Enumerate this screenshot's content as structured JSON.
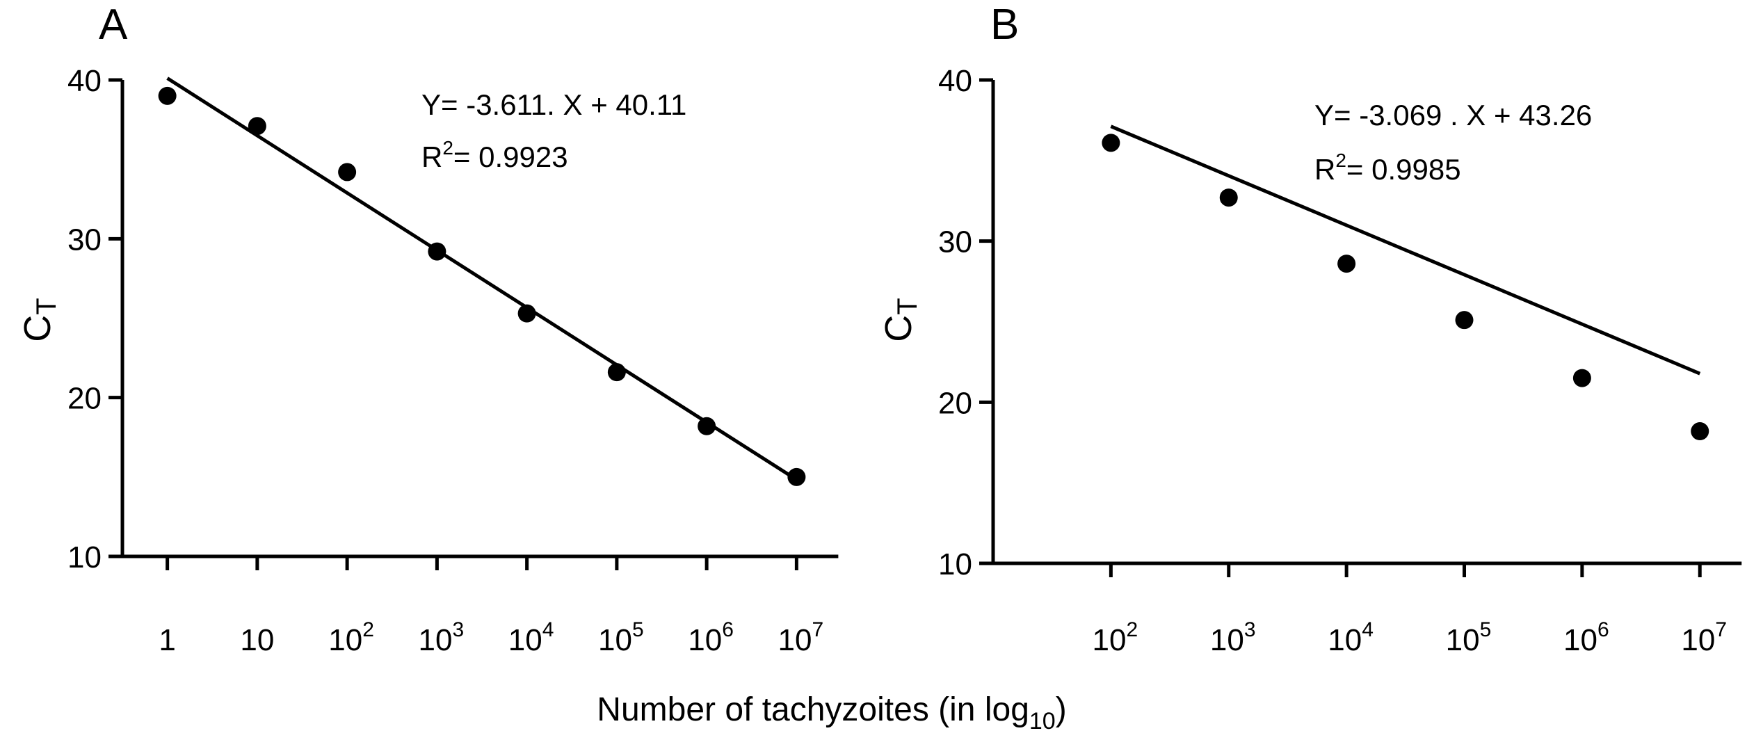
{
  "figure": {
    "xlabel": {
      "main": "Number of tachyzoites  (in log",
      "sub": "10",
      "close": ")"
    }
  },
  "chart_data": [
    {
      "type": "scatter",
      "panel_label": "A",
      "ylabel": {
        "main": "C",
        "sub": "T"
      },
      "ylim": [
        10,
        40
      ],
      "yticks": [
        10,
        20,
        30,
        40
      ],
      "xlim": [
        -0.5,
        7.5
      ],
      "xscale": "log10",
      "xticks": [
        {
          "x": 0,
          "base": "1",
          "exp": ""
        },
        {
          "x": 1,
          "base": "10",
          "exp": ""
        },
        {
          "x": 2,
          "base": "10",
          "exp": "2"
        },
        {
          "x": 3,
          "base": "10",
          "exp": "3"
        },
        {
          "x": 4,
          "base": "10",
          "exp": "4"
        },
        {
          "x": 5,
          "base": "10",
          "exp": "5"
        },
        {
          "x": 6,
          "base": "10",
          "exp": "6"
        },
        {
          "x": 7,
          "base": "10",
          "exp": "7"
        }
      ],
      "points": [
        {
          "x": 0,
          "y": 39.0
        },
        {
          "x": 1,
          "y": 37.1
        },
        {
          "x": 2,
          "y": 34.2
        },
        {
          "x": 3,
          "y": 29.2
        },
        {
          "x": 4,
          "y": 25.3
        },
        {
          "x": 5,
          "y": 21.6
        },
        {
          "x": 6,
          "y": 18.2
        },
        {
          "x": 7,
          "y": 15.0
        }
      ],
      "fit": {
        "slope": -3.611,
        "intercept": 40.11,
        "x_range": [
          0,
          7
        ]
      },
      "annotation": {
        "equation": "Y= -3.611. X + 40.11",
        "r2_prefix": "R",
        "r2_exp": "2",
        "r2_value": "= 0.9923"
      },
      "grid": false
    },
    {
      "type": "scatter",
      "panel_label": "B",
      "ylabel": {
        "main": "C",
        "sub": "T"
      },
      "ylim": [
        10,
        40
      ],
      "yticks": [
        10,
        20,
        30,
        40
      ],
      "xlim": [
        1,
        7.4
      ],
      "xscale": "log10",
      "xticks": [
        {
          "x": 2,
          "base": "10",
          "exp": "2"
        },
        {
          "x": 3,
          "base": "10",
          "exp": "3"
        },
        {
          "x": 4,
          "base": "10",
          "exp": "4"
        },
        {
          "x": 5,
          "base": "10",
          "exp": "5"
        },
        {
          "x": 6,
          "base": "10",
          "exp": "6"
        },
        {
          "x": 7,
          "base": "10",
          "exp": "7"
        }
      ],
      "points": [
        {
          "x": 2,
          "y": 36.1
        },
        {
          "x": 3,
          "y": 32.7
        },
        {
          "x": 4,
          "y": 28.6
        },
        {
          "x": 5,
          "y": 25.1
        },
        {
          "x": 6,
          "y": 21.5
        },
        {
          "x": 7,
          "y": 18.2
        }
      ],
      "fit": {
        "slope": -3.069,
        "intercept": 43.26,
        "x_range": [
          2,
          7
        ]
      },
      "annotation": {
        "equation": "Y= -3.069 . X + 43.26",
        "r2_prefix": "R",
        "r2_exp": "2",
        "r2_value": "= 0.9985"
      },
      "grid": false
    }
  ]
}
